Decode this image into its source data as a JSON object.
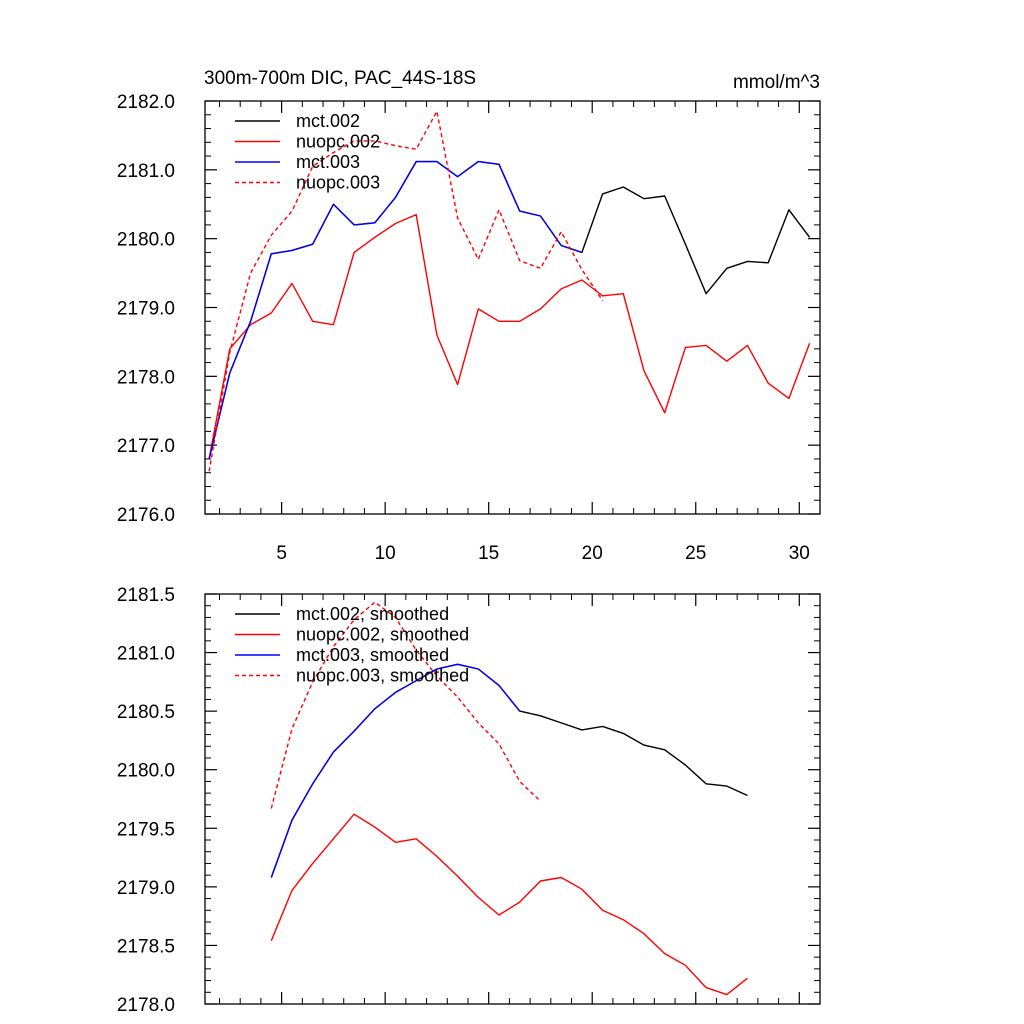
{
  "chart_data": [
    {
      "type": "line",
      "title": "300m-700m DIC, PAC_44S-18S",
      "units_label": "mmol/m^3",
      "xlabel": "",
      "ylabel": "",
      "xlim": [
        1.3,
        31
      ],
      "ylim": [
        2176.0,
        2182.0
      ],
      "xticks": [
        5,
        10,
        15,
        20,
        25,
        30
      ],
      "xtick_labels": [
        "5",
        "10",
        "15",
        "20",
        "25",
        "30"
      ],
      "yticks": [
        2176.0,
        2177.0,
        2178.0,
        2179.0,
        2180.0,
        2181.0,
        2182.0
      ],
      "ytick_labels": [
        "2176.0",
        "2177.0",
        "2178.0",
        "2179.0",
        "2180.0",
        "2181.0",
        "2182.0"
      ],
      "legend_position": "top-left",
      "series": [
        {
          "name": "mct.002",
          "color": "#000000",
          "dash": "solid",
          "x": [
            1.5,
            2.5,
            3.5,
            4.5,
            5.5,
            6.5,
            7.5,
            8.5,
            9.5,
            10.5,
            11.5,
            12.5,
            13.5,
            14.5,
            15.5,
            16.5,
            17.5,
            18.5,
            19.5,
            20.5,
            21.5,
            22.5,
            23.5,
            24.5,
            25.5,
            26.5,
            27.5,
            28.5,
            29.5,
            30.5
          ],
          "values": [
            2176.8,
            2178.05,
            2178.8,
            2179.78,
            2179.83,
            2179.92,
            2180.5,
            2180.2,
            2180.23,
            2180.6,
            2181.12,
            2181.12,
            2180.9,
            2181.12,
            2181.08,
            2180.4,
            2180.33,
            2179.9,
            2179.8,
            2180.65,
            2180.75,
            2180.58,
            2180.62,
            2179.92,
            2179.2,
            2179.57,
            2179.67,
            2179.65,
            2180.42,
            2180.02
          ]
        },
        {
          "name": "nuopc.002",
          "color": "#ff0000",
          "dash": "solid",
          "x": [
            1.5,
            2.5,
            3.5,
            4.5,
            5.5,
            6.5,
            7.5,
            8.5,
            9.5,
            10.5,
            11.5,
            12.5,
            13.5,
            14.5,
            15.5,
            16.5,
            17.5,
            18.5,
            19.5,
            20.5,
            21.5,
            22.5,
            23.5,
            24.5,
            25.5,
            26.5,
            27.5,
            28.5,
            29.5,
            30.5
          ],
          "values": [
            2176.8,
            2178.4,
            2178.75,
            2178.92,
            2179.35,
            2178.8,
            2178.75,
            2179.8,
            2180.02,
            2180.22,
            2180.35,
            2178.6,
            2177.88,
            2178.98,
            2178.8,
            2178.8,
            2178.98,
            2179.27,
            2179.4,
            2179.17,
            2179.2,
            2178.08,
            2177.47,
            2178.42,
            2178.45,
            2178.22,
            2178.45,
            2177.9,
            2177.68,
            2178.48
          ]
        },
        {
          "name": "mct.003",
          "color": "#0000ff",
          "dash": "solid",
          "x": [
            1.5,
            2.5,
            3.5,
            4.5,
            5.5,
            6.5,
            7.5,
            8.5,
            9.5,
            10.5,
            11.5,
            12.5,
            13.5,
            14.5,
            15.5,
            16.5,
            17.5,
            18.5,
            19.5
          ],
          "values": [
            2176.8,
            2178.05,
            2178.8,
            2179.78,
            2179.83,
            2179.92,
            2180.5,
            2180.2,
            2180.23,
            2180.6,
            2181.12,
            2181.12,
            2180.9,
            2181.12,
            2181.08,
            2180.4,
            2180.33,
            2179.9,
            2179.8
          ]
        },
        {
          "name": "nuopc.003",
          "color": "#ff0000",
          "dash": "dashed",
          "x": [
            1.5,
            2.5,
            3.5,
            4.5,
            5.5,
            6.5,
            7.5,
            8.5,
            9.5,
            10.5,
            11.5,
            12.5,
            13.5,
            14.5,
            15.5,
            16.5,
            17.5,
            18.5,
            19.5,
            20.5
          ],
          "values": [
            2176.62,
            2178.35,
            2179.5,
            2180.05,
            2180.4,
            2181.05,
            2181.25,
            2181.42,
            2181.42,
            2181.35,
            2181.3,
            2181.85,
            2180.3,
            2179.7,
            2180.42,
            2179.68,
            2179.57,
            2180.1,
            2179.55,
            2179.1
          ]
        }
      ]
    },
    {
      "type": "line",
      "title": "",
      "xlabel": "",
      "ylabel": "",
      "xlim": [
        1.3,
        31
      ],
      "ylim": [
        2178.0,
        2181.5
      ],
      "xticks": [
        5,
        10,
        15,
        20,
        25,
        30
      ],
      "xtick_labels": [],
      "yticks": [
        2178.0,
        2178.5,
        2179.0,
        2179.5,
        2180.0,
        2180.5,
        2181.0,
        2181.5
      ],
      "ytick_labels": [
        "2178.0",
        "2178.5",
        "2179.0",
        "2179.5",
        "2180.0",
        "2180.5",
        "2181.0",
        "2181.5"
      ],
      "legend_position": "top-left",
      "series": [
        {
          "name": "mct.002, smoothed",
          "color": "#000000",
          "dash": "solid",
          "x": [
            4.5,
            5.5,
            6.5,
            7.5,
            8.5,
            9.5,
            10.5,
            11.5,
            12.5,
            13.5,
            14.5,
            15.5,
            16.5,
            17.5,
            18.5,
            19.5,
            20.5,
            21.5,
            22.5,
            23.5,
            24.5,
            25.5,
            26.5,
            27.5
          ],
          "values": [
            2179.08,
            2179.57,
            2179.88,
            2180.15,
            2180.33,
            2180.52,
            2180.66,
            2180.76,
            2180.86,
            2180.9,
            2180.86,
            2180.72,
            2180.5,
            2180.46,
            2180.4,
            2180.34,
            2180.37,
            2180.31,
            2180.21,
            2180.17,
            2180.04,
            2179.88,
            2179.86,
            2179.78
          ]
        },
        {
          "name": "nuopc.002, smoothed",
          "color": "#ff0000",
          "dash": "solid",
          "x": [
            4.5,
            5.5,
            6.5,
            7.5,
            8.5,
            9.5,
            10.5,
            11.5,
            12.5,
            13.5,
            14.5,
            15.5,
            16.5,
            17.5,
            18.5,
            19.5,
            20.5,
            21.5,
            22.5,
            23.5,
            24.5,
            25.5,
            26.5,
            27.5
          ],
          "values": [
            2178.54,
            2178.97,
            2179.2,
            2179.41,
            2179.62,
            2179.51,
            2179.38,
            2179.41,
            2179.26,
            2179.09,
            2178.91,
            2178.76,
            2178.87,
            2179.05,
            2179.08,
            2178.98,
            2178.8,
            2178.72,
            2178.6,
            2178.43,
            2178.33,
            2178.14,
            2178.08,
            2178.22
          ]
        },
        {
          "name": "mct.003, smoothed",
          "color": "#0000ff",
          "dash": "solid",
          "x": [
            4.5,
            5.5,
            6.5,
            7.5,
            8.5,
            9.5,
            10.5,
            11.5,
            12.5,
            13.5,
            14.5,
            15.5,
            16.5
          ],
          "values": [
            2179.08,
            2179.57,
            2179.88,
            2180.15,
            2180.33,
            2180.52,
            2180.66,
            2180.76,
            2180.86,
            2180.9,
            2180.86,
            2180.72,
            2180.5
          ]
        },
        {
          "name": "nuopc.003, smoothed",
          "color": "#ff0000",
          "dash": "dashed",
          "x": [
            4.5,
            5.5,
            6.5,
            7.5,
            8.5,
            9.5,
            10.5,
            11.5,
            12.5,
            13.5,
            14.5,
            15.5,
            16.5,
            17.5
          ],
          "values": [
            2179.67,
            2180.35,
            2180.75,
            2181.05,
            2181.28,
            2181.43,
            2181.3,
            2181.02,
            2180.8,
            2180.62,
            2180.4,
            2180.22,
            2179.9,
            2179.73
          ]
        }
      ]
    }
  ]
}
